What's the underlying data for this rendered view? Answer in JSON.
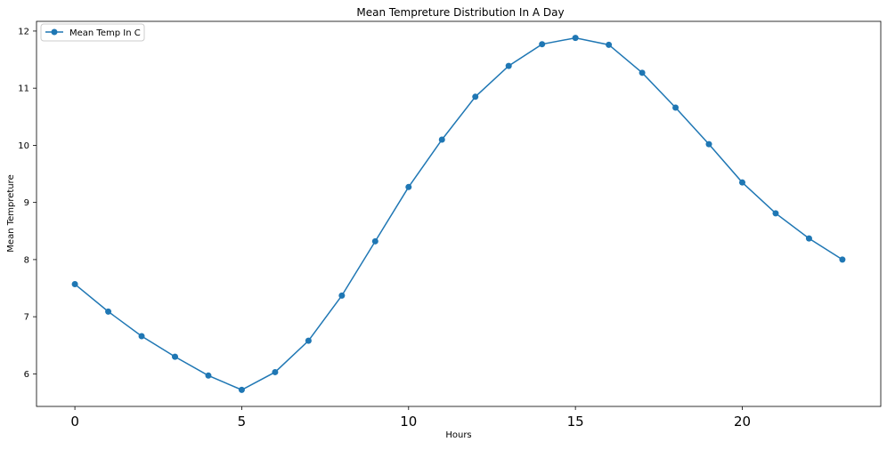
{
  "chart_data": {
    "type": "line",
    "title": "Mean Tempreture Distribution In A Day",
    "xlabel": "Hours",
    "ylabel": "Mean Tempreture",
    "x": [
      0,
      1,
      2,
      3,
      4,
      5,
      6,
      7,
      8,
      9,
      10,
      11,
      12,
      13,
      14,
      15,
      16,
      17,
      18,
      19,
      20,
      21,
      22,
      23
    ],
    "series": [
      {
        "name": "Mean Temp In C",
        "color": "#1f77b4",
        "marker": "circle",
        "values": [
          7.57,
          7.09,
          6.66,
          6.3,
          5.97,
          5.72,
          6.03,
          6.58,
          7.37,
          8.32,
          9.27,
          10.1,
          10.85,
          11.39,
          11.77,
          11.88,
          11.76,
          11.27,
          10.66,
          10.02,
          9.35,
          8.81,
          8.37,
          8.0
        ]
      }
    ],
    "xlim": [
      -1.15,
      24.15
    ],
    "ylim": [
      5.43,
      12.17
    ],
    "x_ticks": [
      0,
      5,
      10,
      15,
      20
    ],
    "y_ticks": [
      6,
      7,
      8,
      9,
      10,
      11,
      12
    ],
    "grid": false,
    "legend_position": "top-left"
  }
}
